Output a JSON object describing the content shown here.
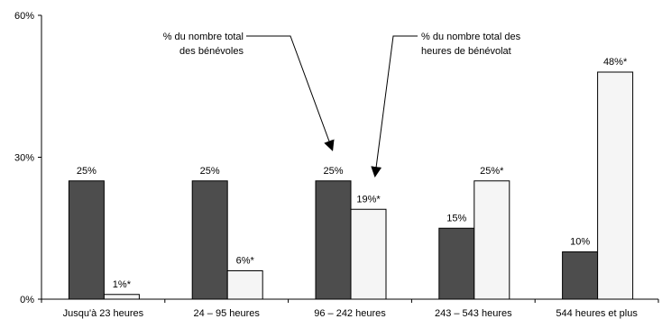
{
  "chart_data": {
    "type": "bar",
    "categories": [
      "Jusqu'à 23 heures",
      "24 – 95 heures",
      "96 – 242 heures",
      "243 –  543 heures",
      "544 heures et plus"
    ],
    "series": [
      {
        "name": "% du nombre total des bénévoles",
        "values": [
          25,
          25,
          25,
          15,
          10
        ],
        "labels": [
          "25%",
          "25%",
          "25%",
          "15%",
          "10%"
        ],
        "color": "#4d4d4d"
      },
      {
        "name": "% du nombre total des heures de bénévolat",
        "values": [
          1,
          6,
          19,
          25,
          48
        ],
        "labels": [
          "1%*",
          "6%*",
          "19%*",
          "25%*",
          "48%*"
        ],
        "color": "#f5f5f5"
      }
    ],
    "y_ticks": [
      {
        "value": 0,
        "label": "0%"
      },
      {
        "value": 30,
        "label": "30%"
      },
      {
        "value": 60,
        "label": "60%"
      }
    ],
    "ylim": [
      0,
      60
    ],
    "grid": false,
    "legend": "annotations with arrows",
    "annotations": [
      {
        "lines": [
          "% du nombre total",
          "des bénévoles"
        ],
        "series": 0,
        "category": 2
      },
      {
        "lines": [
          "% du nombre total des",
          "heures de bénévolat"
        ],
        "series": 1,
        "category": 2
      }
    ]
  }
}
